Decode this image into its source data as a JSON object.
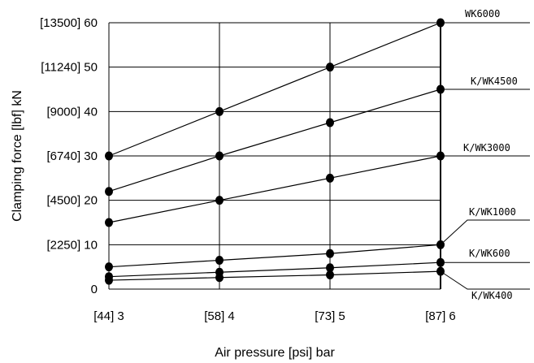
{
  "chart_data": {
    "type": "line",
    "xlabel": "Air pressure [psi] bar",
    "ylabel": "Clamping force  [lbf] kN",
    "x": [
      3,
      4,
      5,
      6
    ],
    "x_tick_labels": [
      "[44] 3",
      "[58] 4",
      "[73] 5",
      "[87] 6"
    ],
    "xlim": [
      3,
      6
    ],
    "y_ticks": [
      0,
      10,
      20,
      30,
      40,
      50,
      60
    ],
    "y_tick_labels": [
      "0",
      "[2250] 10",
      "[4500] 20",
      "[6740] 30",
      "[9000] 40",
      "[11240] 50",
      "[13500] 60"
    ],
    "ylim": [
      0,
      60
    ],
    "grid": true,
    "series": [
      {
        "name": "WK6000",
        "values": [
          30,
          40,
          50,
          60
        ]
      },
      {
        "name": "K/WK4500",
        "values": [
          22,
          30,
          37.5,
          45
        ]
      },
      {
        "name": "K/WK3000",
        "values": [
          15,
          20,
          25,
          30
        ]
      },
      {
        "name": "K/WK1000",
        "values": [
          5,
          6.5,
          8,
          10
        ]
      },
      {
        "name": "K/WK600",
        "values": [
          2.8,
          3.8,
          4.8,
          6
        ]
      },
      {
        "name": "K/WK400",
        "values": [
          2,
          2.6,
          3.2,
          4
        ]
      }
    ]
  }
}
